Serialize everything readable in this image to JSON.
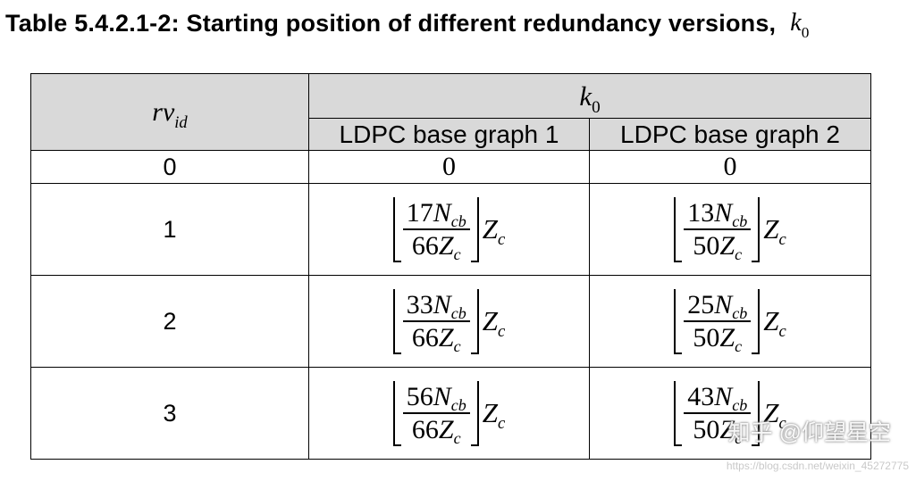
{
  "caption": {
    "text": "Table 5.4.2.1-2: Starting position of different redundancy versions,",
    "symbol": "k",
    "symbol_sub": "0"
  },
  "table": {
    "rv_header": {
      "sym": "rv",
      "sub": "id"
    },
    "k0_header": {
      "sym": "k",
      "sub": "0"
    },
    "columns": [
      "LDPC base graph 1",
      "LDPC base graph 2"
    ],
    "row0": {
      "rv": "0",
      "bg1": "0",
      "bg2": "0"
    },
    "rows": [
      {
        "rv": "1",
        "bg1": {
          "coef_num": "17",
          "coef_den": "66"
        },
        "bg2": {
          "coef_num": "13",
          "coef_den": "50"
        }
      },
      {
        "rv": "2",
        "bg1": {
          "coef_num": "33",
          "coef_den": "66"
        },
        "bg2": {
          "coef_num": "25",
          "coef_den": "50"
        }
      },
      {
        "rv": "3",
        "bg1": {
          "coef_num": "56",
          "coef_den": "66"
        },
        "bg2": {
          "coef_num": "43",
          "coef_den": "50"
        }
      }
    ],
    "formula": {
      "N": "N",
      "N_sub": "cb",
      "Z": "Z",
      "Z_sub": "c"
    }
  },
  "watermark": {
    "text": "知乎 @仰望星空",
    "url": "https://blog.csdn.net/weixin_45272775"
  }
}
